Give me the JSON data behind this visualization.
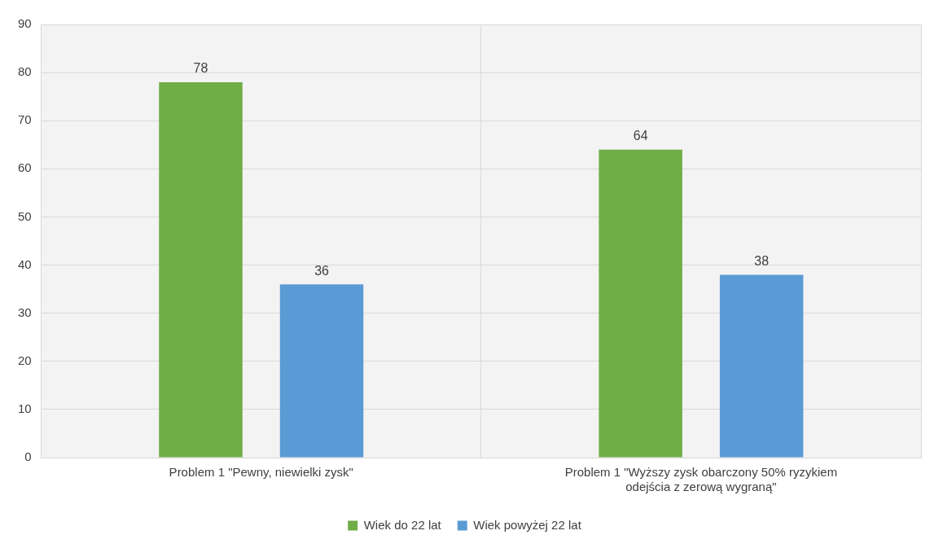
{
  "chart_data": {
    "type": "bar",
    "categories": [
      "Problem 1 \"Pewny, niewielki zysk\"",
      "Problem 1 \"Wyższy zysk obarczony 50% ryzykiem odejścia z zerową wygraną\""
    ],
    "series": [
      {
        "name": "Wiek do 22 lat",
        "color": "#70ad47",
        "values": [
          78,
          64
        ]
      },
      {
        "name": "Wiek powyżej 22 lat",
        "color": "#5b9bd5",
        "values": [
          36,
          38
        ]
      }
    ],
    "ylim": [
      0,
      90
    ],
    "yticks": [
      0,
      10,
      20,
      30,
      40,
      50,
      60,
      70,
      80,
      90
    ],
    "grid": true,
    "legend": "bottom",
    "data_labels": true
  }
}
